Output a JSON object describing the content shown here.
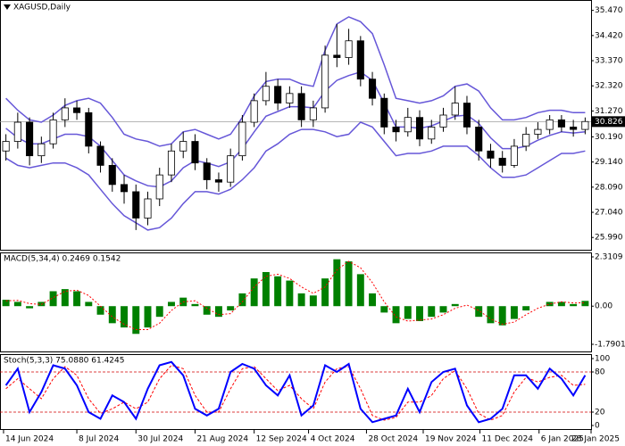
{
  "chart_data": [
    {
      "type": "candlestick",
      "title": "XAGUSD,Daily",
      "xlim": [
        0,
        50
      ],
      "xticks": [
        {
          "value": 0.3,
          "label": "14 Jun 2024"
        },
        {
          "value": 6.5,
          "label": "8 Jul 2024"
        },
        {
          "value": 11.5,
          "label": "30 Jul 2024"
        },
        {
          "value": 16.5,
          "label": "21 Aug 2024"
        },
        {
          "value": 21.5,
          "label": "12 Sep 2024"
        },
        {
          "value": 26.1,
          "label": "4 Oct 2024"
        },
        {
          "value": 31,
          "label": "28 Oct 2024"
        },
        {
          "value": 35.8,
          "label": "19 Nov 2024"
        },
        {
          "value": 40.6,
          "label": "11 Dec 2024"
        },
        {
          "value": 45.6,
          "label": "6 Jan 2025"
        },
        {
          "value": 50,
          "label": "28 Jan 2025"
        }
      ],
      "ylim": [
        25.7,
        35.68
      ],
      "yticks": [
        {
          "value": 35.47,
          "label": "35.470"
        },
        {
          "value": 34.42,
          "label": "34.420"
        },
        {
          "value": 33.37,
          "label": "33.370"
        },
        {
          "value": 32.32,
          "label": "32.320"
        },
        {
          "value": 31.27,
          "label": "31.270"
        },
        {
          "value": 30.19,
          "label": "30.190"
        },
        {
          "value": 29.14,
          "label": "29.140"
        },
        {
          "value": 28.09,
          "label": "28.090"
        },
        {
          "value": 27.04,
          "label": "27.040"
        },
        {
          "value": 25.99,
          "label": "25.990"
        }
      ],
      "last_price": 30.826,
      "open": [
        29.6,
        30.0,
        30.8,
        29.4,
        29.9,
        30.9,
        31.4,
        31.2,
        29.8,
        29.0,
        28.2,
        27.9,
        26.8,
        27.6,
        28.6,
        29.6,
        30.0,
        29.1,
        28.4,
        28.3,
        29.4,
        30.8,
        31.7,
        32.3,
        31.6,
        32.0,
        30.9,
        31.4,
        33.6,
        33.5,
        34.2,
        32.6,
        31.8,
        30.6,
        30.4,
        31.0,
        30.1,
        30.6,
        31.1,
        31.6,
        30.6,
        29.6,
        29.3,
        29.0,
        29.8,
        30.3,
        30.5,
        30.9,
        30.6,
        30.5
      ],
      "high": [
        30.3,
        31.2,
        31.0,
        30.2,
        31.2,
        31.8,
        31.7,
        31.4,
        30.0,
        29.3,
        28.6,
        28.2,
        27.9,
        28.9,
        29.9,
        30.4,
        30.3,
        29.3,
        28.7,
        29.7,
        31.1,
        32.0,
        32.9,
        32.6,
        32.3,
        32.3,
        31.7,
        34.0,
        34.9,
        34.7,
        34.4,
        32.9,
        32.0,
        30.9,
        31.4,
        31.3,
        30.9,
        31.4,
        32.3,
        31.9,
        30.9,
        29.9,
        29.6,
        30.1,
        30.6,
        30.8,
        31.1,
        31.1,
        30.9,
        31.0
      ],
      "low": [
        29.2,
        29.7,
        29.0,
        29.1,
        29.7,
        30.6,
        30.9,
        29.5,
        28.7,
        27.9,
        27.4,
        26.3,
        26.5,
        27.3,
        28.3,
        29.3,
        28.8,
        28.0,
        27.9,
        28.1,
        29.2,
        30.6,
        31.5,
        31.3,
        31.4,
        30.6,
        30.6,
        31.2,
        33.1,
        33.2,
        32.3,
        31.5,
        30.3,
        30.0,
        30.2,
        29.8,
        29.9,
        30.4,
        30.9,
        30.3,
        29.2,
        28.9,
        28.7,
        28.9,
        29.6,
        30.1,
        30.3,
        30.4,
        30.2,
        30.3
      ],
      "close": [
        30.0,
        30.8,
        29.4,
        29.9,
        30.9,
        31.4,
        31.2,
        29.8,
        29.0,
        28.2,
        27.9,
        26.8,
        27.6,
        28.6,
        29.6,
        30.0,
        29.1,
        28.4,
        28.3,
        29.4,
        30.8,
        31.7,
        32.3,
        31.6,
        32.0,
        30.9,
        31.4,
        33.6,
        33.5,
        34.2,
        32.6,
        31.8,
        30.6,
        30.4,
        31.0,
        30.1,
        30.6,
        31.1,
        31.6,
        30.6,
        29.6,
        29.3,
        29.0,
        29.8,
        30.3,
        30.5,
        30.9,
        30.6,
        30.5,
        30.83
      ],
      "band_color": "#6657d8",
      "bands": {
        "upper": [
          31.8,
          31.3,
          30.9,
          30.8,
          31.1,
          31.5,
          31.7,
          31.8,
          31.6,
          31.0,
          30.3,
          30.1,
          30.0,
          29.8,
          29.9,
          30.4,
          30.5,
          30.3,
          30.1,
          30.3,
          31.0,
          31.9,
          32.5,
          32.6,
          32.6,
          32.4,
          32.3,
          33.8,
          34.9,
          35.2,
          35.0,
          34.5,
          33.2,
          31.8,
          31.7,
          31.6,
          31.7,
          31.9,
          32.3,
          32.4,
          32.1,
          31.4,
          30.9,
          30.9,
          31.0,
          31.2,
          31.3,
          31.3,
          31.2,
          31.2
        ],
        "middle": [
          30.55,
          30.15,
          29.9,
          29.9,
          30.1,
          30.3,
          30.3,
          30.2,
          29.8,
          29.2,
          28.6,
          28.35,
          28.15,
          28.1,
          28.35,
          28.9,
          29.2,
          29.1,
          28.95,
          29.15,
          29.7,
          30.4,
          31.05,
          31.25,
          31.45,
          31.45,
          31.4,
          32.1,
          32.55,
          32.75,
          32.9,
          32.55,
          31.6,
          30.6,
          30.6,
          30.55,
          30.65,
          30.85,
          31.05,
          31.1,
          30.75,
          30.15,
          29.7,
          29.7,
          29.8,
          30.05,
          30.25,
          30.4,
          30.35,
          30.4
        ],
        "lower": [
          29.3,
          29.0,
          28.9,
          29.0,
          29.1,
          29.1,
          28.9,
          28.6,
          28.0,
          27.4,
          26.9,
          26.6,
          26.3,
          26.4,
          26.8,
          27.4,
          27.9,
          27.9,
          27.8,
          28.0,
          28.4,
          28.9,
          29.6,
          29.9,
          30.3,
          30.5,
          30.5,
          30.4,
          30.2,
          30.3,
          30.8,
          30.6,
          30.0,
          29.4,
          29.5,
          29.5,
          29.6,
          29.8,
          29.8,
          29.8,
          29.4,
          28.9,
          28.5,
          28.5,
          28.6,
          28.9,
          29.2,
          29.5,
          29.5,
          29.6
        ]
      }
    },
    {
      "type": "macd",
      "title": "MACD(5,34,4) 0.2469 0.1542",
      "ylim": [
        -1.7901,
        2.3109
      ],
      "yticks": [
        2.3109,
        {
          "value": 0,
          "label": "0.00"
        },
        -1.7901
      ],
      "series": [
        {
          "name": "MACD",
          "color": "#008000",
          "values": [
            0.3,
            0.2,
            -0.1,
            0.2,
            0.7,
            0.8,
            0.7,
            0.2,
            -0.4,
            -0.8,
            -1.0,
            -1.3,
            -1.0,
            -0.5,
            0.2,
            0.4,
            0.1,
            -0.4,
            -0.5,
            -0.2,
            0.6,
            1.3,
            1.6,
            1.4,
            1.2,
            0.6,
            0.5,
            1.3,
            2.2,
            2.1,
            1.5,
            0.6,
            -0.3,
            -0.8,
            -0.6,
            -0.7,
            -0.5,
            -0.3,
            0.1,
            0.0,
            -0.5,
            -0.8,
            -0.9,
            -0.6,
            -0.2,
            0.0,
            0.2,
            0.2,
            0.1,
            0.2469
          ]
        },
        {
          "name": "Signal",
          "color": "#ff0000",
          "values": [
            0.25,
            0.27,
            0.12,
            0.08,
            0.4,
            0.7,
            0.75,
            0.5,
            0.0,
            -0.5,
            -0.85,
            -1.1,
            -1.1,
            -0.8,
            -0.2,
            0.2,
            0.25,
            -0.1,
            -0.4,
            -0.35,
            0.2,
            0.9,
            1.4,
            1.5,
            1.3,
            0.9,
            0.6,
            0.9,
            1.7,
            2.1,
            1.8,
            1.1,
            0.2,
            -0.5,
            -0.7,
            -0.65,
            -0.6,
            -0.4,
            -0.1,
            0.05,
            -0.2,
            -0.6,
            -0.85,
            -0.75,
            -0.4,
            -0.1,
            0.1,
            0.2,
            0.15,
            0.1542
          ]
        }
      ]
    },
    {
      "type": "stochastic",
      "title": "Stoch(5,3,3) 75.0880 61.4245",
      "ylim": [
        0,
        100
      ],
      "yticks": [
        100,
        80,
        20,
        0
      ],
      "levels": [
        80,
        20
      ],
      "series": [
        {
          "name": "Main",
          "color": "#0000ff",
          "values": [
            60,
            85,
            20,
            50,
            90,
            85,
            60,
            20,
            10,
            45,
            35,
            10,
            55,
            90,
            95,
            75,
            25,
            15,
            25,
            80,
            92,
            85,
            60,
            45,
            75,
            15,
            30,
            90,
            80,
            92,
            25,
            5,
            10,
            15,
            55,
            20,
            65,
            80,
            85,
            30,
            5,
            10,
            25,
            75,
            75,
            55,
            85,
            70,
            45,
            75.088
          ]
        },
        {
          "name": "Signal",
          "color": "#ff0000",
          "values": [
            55,
            70,
            55,
            40,
            70,
            88,
            75,
            40,
            18,
            25,
            35,
            25,
            35,
            70,
            90,
            85,
            45,
            20,
            20,
            55,
            85,
            88,
            70,
            52,
            60,
            40,
            25,
            65,
            85,
            88,
            55,
            15,
            8,
            12,
            35,
            35,
            45,
            70,
            82,
            55,
            18,
            8,
            15,
            50,
            72,
            65,
            72,
            75,
            60,
            61.4245
          ]
        }
      ]
    }
  ]
}
